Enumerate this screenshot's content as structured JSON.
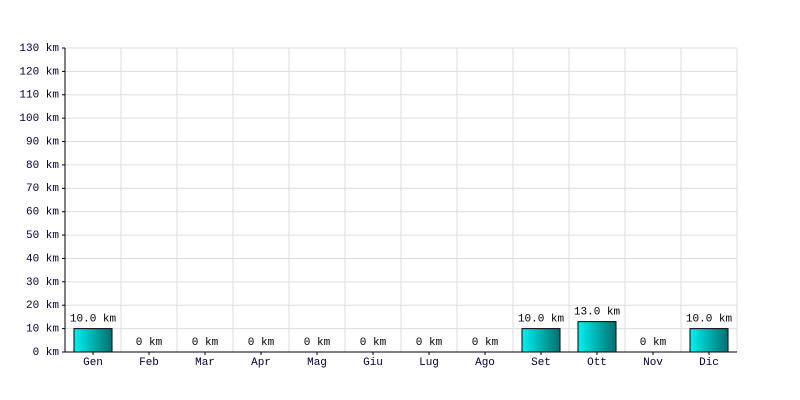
{
  "chart_data": {
    "type": "bar",
    "categories": [
      "Gen",
      "Feb",
      "Mar",
      "Apr",
      "Mag",
      "Giu",
      "Lug",
      "Ago",
      "Set",
      "Ott",
      "Nov",
      "Dic"
    ],
    "values": [
      10,
      0,
      0,
      0,
      0,
      0,
      0,
      0,
      10,
      13,
      0,
      10
    ],
    "value_labels": [
      "10.0 km",
      "0 km",
      "0 km",
      "0 km",
      "0 km",
      "0 km",
      "0 km",
      "0 km",
      "10.0 km",
      "13.0 km",
      "0 km",
      "10.0 km"
    ],
    "color": [
      "#00f0f0",
      "#007070"
    ],
    "ylim": [
      0,
      130
    ],
    "yticks": [
      {
        "value": 0,
        "label": "0 km"
      },
      {
        "value": 10,
        "label": "10 km"
      },
      {
        "value": 20,
        "label": "20 km"
      },
      {
        "value": 30,
        "label": "30 km"
      },
      {
        "value": 40,
        "label": "40 km"
      },
      {
        "value": 50,
        "label": "50 km"
      },
      {
        "value": 60,
        "label": "60 km"
      },
      {
        "value": 70,
        "label": "70 km"
      },
      {
        "value": 80,
        "label": "80 km"
      },
      {
        "value": 90,
        "label": "90 km"
      },
      {
        "value": 100,
        "label": "100 km"
      },
      {
        "value": 110,
        "label": "110 km"
      },
      {
        "value": 120,
        "label": "120 km"
      },
      {
        "value": 130,
        "label": "130 km"
      }
    ],
    "grid": true
  }
}
